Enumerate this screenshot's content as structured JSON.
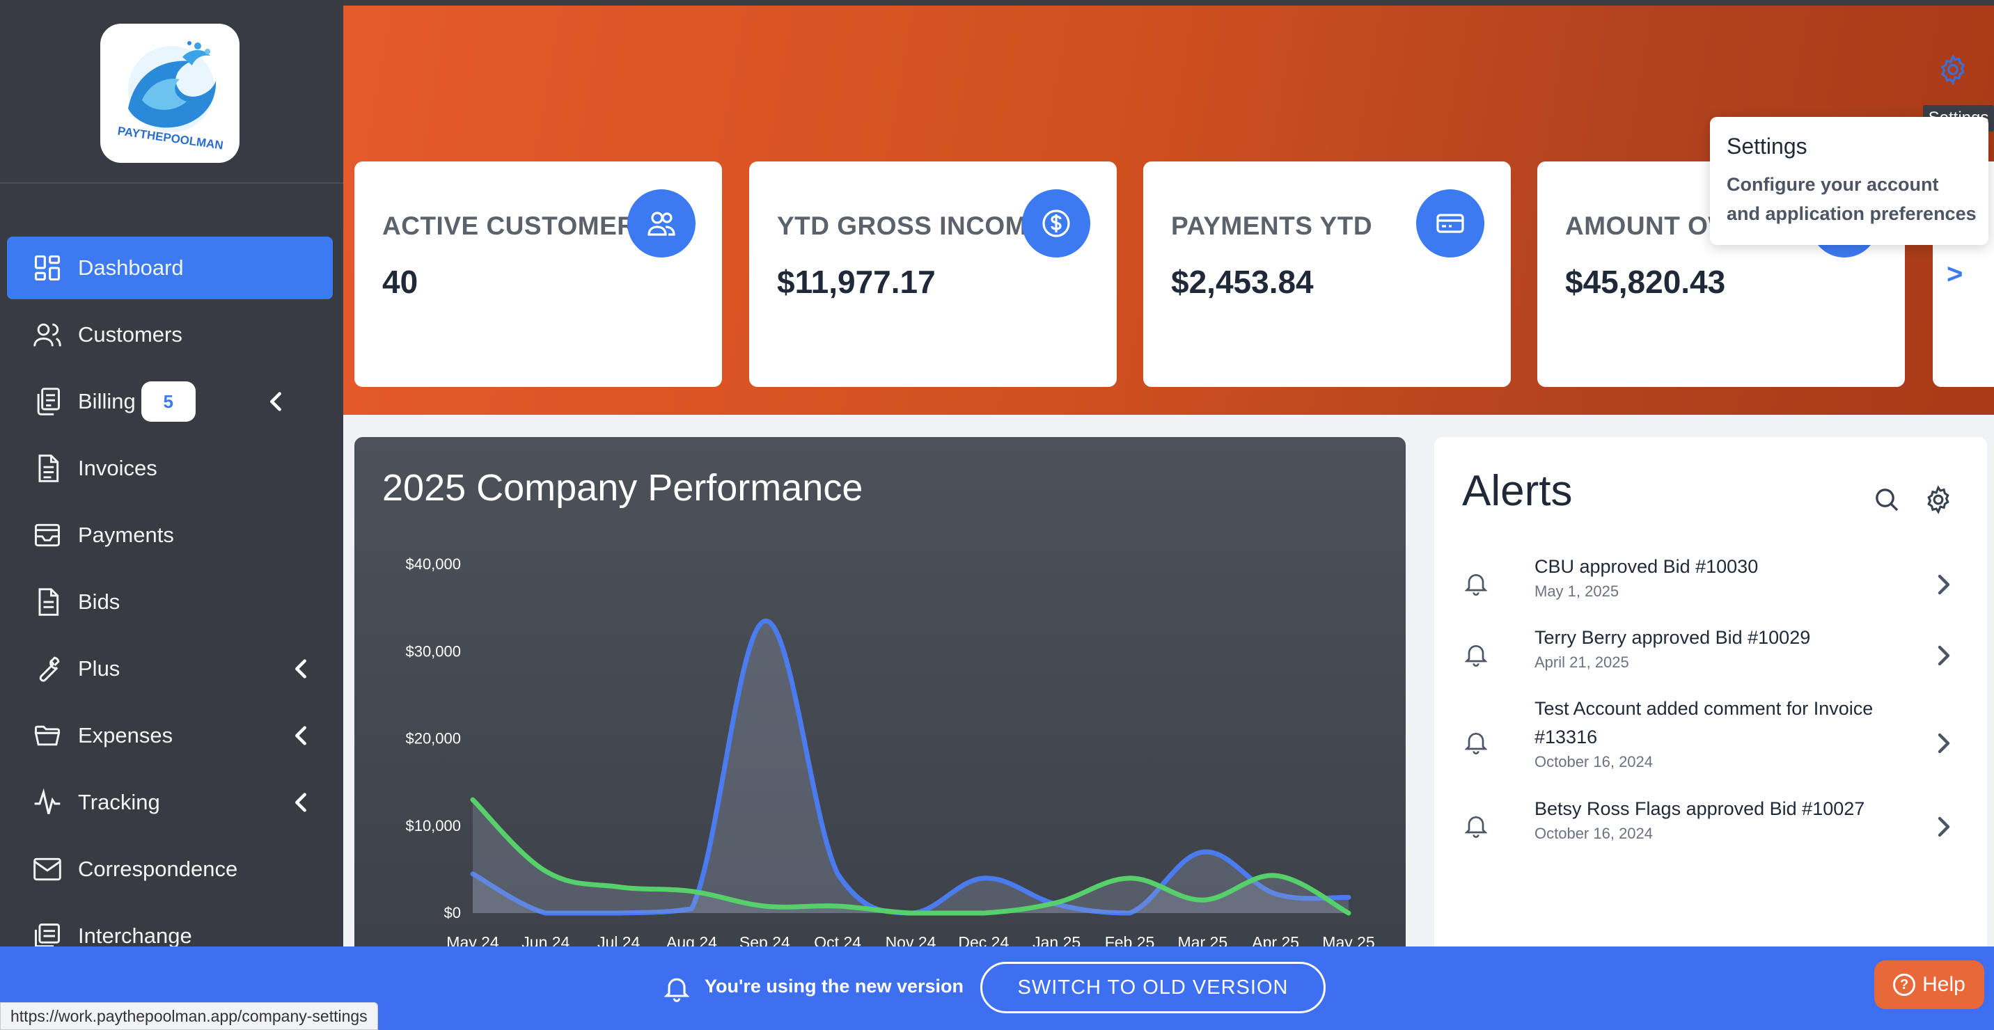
{
  "sidebar": {
    "logo_text": "PAYTHEPOOLMAN",
    "items": [
      {
        "label": "Dashboard",
        "icon": "dashboard-icon",
        "active": true
      },
      {
        "label": "Customers",
        "icon": "users-icon"
      },
      {
        "label": "Billing",
        "icon": "copy-icon",
        "badge": "5",
        "has_submenu": true
      },
      {
        "label": "Invoices",
        "icon": "document-icon"
      },
      {
        "label": "Payments",
        "icon": "inbox-icon"
      },
      {
        "label": "Bids",
        "icon": "file-icon"
      },
      {
        "label": "Plus",
        "icon": "wrench-icon",
        "has_submenu": true
      },
      {
        "label": "Expenses",
        "icon": "folder-icon",
        "has_submenu": true
      },
      {
        "label": "Tracking",
        "icon": "pulse-icon",
        "has_submenu": true
      },
      {
        "label": "Correspondence",
        "icon": "mail-icon"
      },
      {
        "label": "Interchange",
        "icon": "layers-icon"
      }
    ]
  },
  "header": {
    "settings_tooltip": "Settings",
    "popover": {
      "title": "Settings",
      "body": "Configure your account and application preferences"
    },
    "next_label": ">"
  },
  "stats": [
    {
      "title": "ACTIVE CUSTOMERS",
      "value": "40",
      "icon": "users-icon"
    },
    {
      "title": "YTD GROSS INCOME",
      "value": "$11,977.17",
      "icon": "dollar-icon"
    },
    {
      "title": "PAYMENTS YTD",
      "value": "$2,453.84",
      "icon": "credit-card-icon"
    },
    {
      "title": "AMOUNT OW",
      "value": "$45,820.43",
      "icon": "alert-icon"
    }
  ],
  "chart": {
    "title": "2025 Company Performance"
  },
  "chart_data": {
    "type": "line",
    "title": "2025 Company Performance",
    "categories": [
      "May 24",
      "Jun 24",
      "Jul 24",
      "Aug 24",
      "Sep 24",
      "Oct 24",
      "Nov 24",
      "Dec 24",
      "Jan 25",
      "Feb 25",
      "Mar 25",
      "Apr 25",
      "May 25"
    ],
    "y_ticks": [
      "$40,000",
      "$30,000",
      "$20,000",
      "$10,000",
      "$0"
    ],
    "ylim": [
      0,
      40000
    ],
    "grid": false,
    "series": [
      {
        "color": "#4a7cf0",
        "values": [
          4500,
          0,
          0,
          500,
          33500,
          4500,
          0,
          4000,
          1000,
          0,
          7000,
          2200,
          1800
        ]
      },
      {
        "color": "#55d06a",
        "values": [
          13000,
          4800,
          3000,
          2500,
          800,
          800,
          0,
          0,
          1200,
          4000,
          1500,
          4300,
          0
        ]
      }
    ]
  },
  "alerts": {
    "title": "Alerts",
    "items": [
      {
        "text": "CBU approved Bid #10030",
        "date": "May 1, 2025"
      },
      {
        "text": "Terry Berry approved Bid #10029",
        "date": "April 21, 2025"
      },
      {
        "text": "Test Account added comment for Invoice #13316",
        "date": "October 16, 2024"
      },
      {
        "text": "Betsy Ross Flags approved Bid #10027",
        "date": "October 16, 2024"
      }
    ]
  },
  "bottom_bar": {
    "message": "You're using the new version",
    "switch_label": "SWITCH TO OLD VERSION",
    "help_label": "Help"
  },
  "status_url": "https://work.paythepoolman.app/company-settings",
  "colors": {
    "accent": "#3b7af0",
    "sidebar_bg": "#383c42",
    "banner_orange": "#d1501f",
    "help_orange": "#e9683a"
  }
}
